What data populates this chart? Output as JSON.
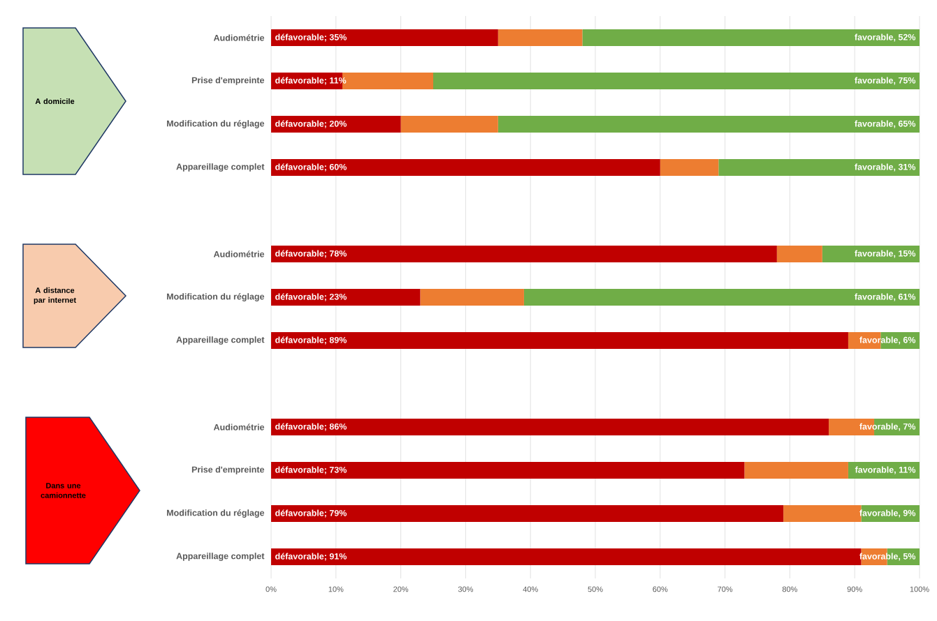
{
  "chart_data": {
    "type": "bar",
    "orientation": "horizontal",
    "stacked": true,
    "categories": [
      "Audiométrie",
      "Prise d'empreinte",
      "Modification du réglage",
      "Appareillage complet",
      null,
      "Audiométrie",
      "Modification du réglage",
      "Appareillage complet",
      null,
      "Audiométrie",
      "Prise d'empreinte",
      "Modification du réglage",
      "Appareillage complet"
    ],
    "series": [
      {
        "color": "#c00000",
        "values": [
          35,
          11,
          20,
          60,
          null,
          78,
          23,
          89,
          null,
          86,
          73,
          79,
          91
        ],
        "value_labels": [
          "défavorable; 35%",
          "défavorable; 11%",
          "défavorable; 20%",
          "défavorable; 60%",
          null,
          "défavorable; 78%",
          "défavorable; 23%",
          "défavorable; 89%",
          null,
          "défavorable; 86%",
          "défavorable; 73%",
          "défavorable; 79%",
          "défavorable; 91%"
        ]
      },
      {
        "color": "#ed7d31",
        "values": [
          13,
          14,
          15,
          9,
          null,
          7,
          16,
          5,
          null,
          7,
          16,
          12,
          4
        ]
      },
      {
        "color": "#70ad47",
        "values": [
          52,
          75,
          65,
          31,
          null,
          15,
          61,
          6,
          null,
          7,
          11,
          9,
          5
        ],
        "value_labels": [
          "favorable, 52%",
          "favorable, 75%",
          "favorable, 65%",
          "favorable, 31%",
          null,
          "favorable, 15%",
          "favorable, 61%",
          "favorable, 6%",
          null,
          "favorable, 7%",
          "favorable, 11%",
          "favorable, 9%",
          "favorable, 5%"
        ]
      }
    ],
    "xlim": [
      0,
      100
    ],
    "xticks": [
      {
        "value": 0,
        "label": "0%"
      },
      {
        "value": 10,
        "label": "10%"
      },
      {
        "value": 20,
        "label": "20%"
      },
      {
        "value": 30,
        "label": "30%"
      },
      {
        "value": 40,
        "label": "40%"
      },
      {
        "value": 50,
        "label": "50%"
      },
      {
        "value": 60,
        "label": "60%"
      },
      {
        "value": 70,
        "label": "70%"
      },
      {
        "value": 80,
        "label": "80%"
      },
      {
        "value": 90,
        "label": "90%"
      },
      {
        "value": 100,
        "label": "100%"
      }
    ],
    "grid": "x",
    "annotations": [
      "A domicile",
      "A distance par internet",
      "Dans une camionnette"
    ]
  }
}
